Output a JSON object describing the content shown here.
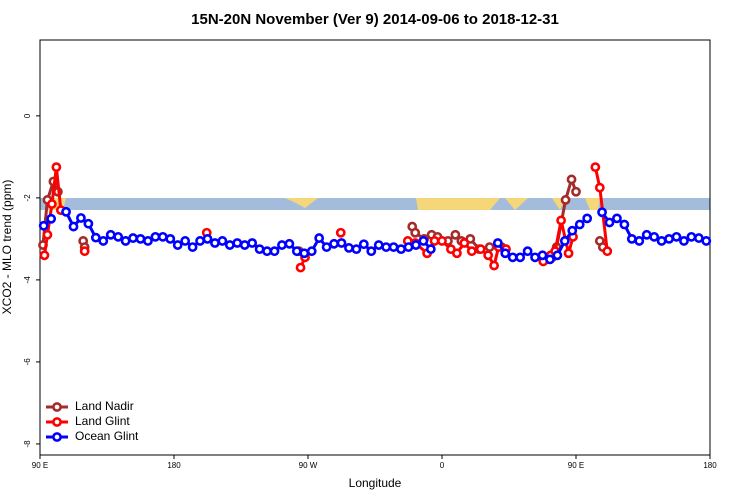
{
  "chart_data": {
    "type": "line",
    "title": "15N-20N November (Ver 9)   2014-09-06 to 2018-12-31",
    "x_label": "Longitude",
    "y_label": "XCO2 - MLO trend (ppm)",
    "xlim": [
      90,
      540
    ],
    "xticks": [
      {
        "value": 90,
        "label": "90 E"
      },
      {
        "value": 180,
        "label": "180"
      },
      {
        "value": 270,
        "label": "90 W"
      },
      {
        "value": 360,
        "label": "0"
      },
      {
        "value": 450,
        "label": "90 E"
      },
      {
        "value": 540,
        "label": "180"
      }
    ],
    "ylim": [
      -8.27,
      1.85
    ],
    "yticks": [
      0,
      -2,
      -4,
      -6,
      -8
    ],
    "legend": "bottom-left",
    "series": [
      {
        "name": "Land Nadir",
        "color": "#a52a2a",
        "x": [
          92,
          95,
          99,
          102,
          110,
          119,
          120,
          190,
          264,
          300,
          340,
          342,
          348,
          353,
          357,
          364,
          369,
          373,
          379,
          385,
          392,
          400,
          415,
          430,
          434,
          437,
          443,
          447,
          450,
          458,
          466,
          468
        ],
        "values": [
          -3.15,
          -2.05,
          -1.6,
          -1.85,
          null,
          -3.05,
          -3.2,
          null,
          -3.3,
          null,
          -2.7,
          -2.85,
          -3.0,
          -2.9,
          -2.95,
          -3.05,
          -2.9,
          -3.05,
          -3.0,
          -3.25,
          -3.2,
          -3.2,
          null,
          -3.5,
          -3.45,
          -3.2,
          -2.05,
          -1.55,
          -1.85,
          null,
          -3.05,
          -3.2
        ]
      },
      {
        "name": "Land Glint",
        "color": "#ff0000",
        "x": [
          93,
          95,
          98,
          101,
          104,
          112,
          120,
          150,
          202,
          230,
          265,
          268,
          280,
          292,
          320,
          337,
          342,
          350,
          355,
          360,
          366,
          370,
          375,
          380,
          386,
          391,
          395,
          398,
          403,
          415,
          428,
          433,
          436,
          440,
          445,
          448,
          455,
          463,
          466,
          471
        ],
        "values": [
          -3.4,
          -2.9,
          -2.15,
          -1.25,
          -2.3,
          null,
          -3.3,
          null,
          -2.85,
          null,
          -3.7,
          -3.45,
          null,
          -2.85,
          null,
          -3.05,
          -3.1,
          -3.35,
          -3.05,
          -3.05,
          -3.25,
          -3.35,
          -3.1,
          -3.3,
          -3.25,
          -3.4,
          -3.65,
          -3.2,
          -3.25,
          null,
          -3.55,
          -3.4,
          -3.3,
          -2.55,
          -3.35,
          -2.95,
          null,
          -1.25,
          -1.75,
          -3.3
        ]
      },
      {
        "name": "Ocean Glint",
        "color": "#0000ff",
        "x": [
          92.5,
          97.5,
          102.5,
          107.5,
          112.5,
          117.5,
          122.5,
          127.5,
          132.5,
          137.5,
          142.5,
          147.5,
          152.5,
          157.5,
          162.5,
          167.5,
          172.5,
          177.5,
          182.5,
          187.5,
          192.5,
          197.5,
          202.5,
          207.5,
          212.5,
          217.5,
          222.5,
          227.5,
          232.5,
          237.5,
          242.5,
          247.5,
          252.5,
          257.5,
          262.5,
          267.5,
          272.5,
          277.5,
          282.5,
          287.5,
          292.5,
          297.5,
          302.5,
          307.5,
          312.5,
          317.5,
          322.5,
          327.5,
          332.5,
          337.5,
          342.5,
          347.5,
          352.5,
          357.5,
          362.5,
          367.5,
          372.5,
          377.5,
          382.5,
          387.5,
          392.5,
          397.5,
          402.5,
          407.5,
          412.5,
          417.5,
          422.5,
          427.5,
          432.5,
          437.5,
          442.5,
          447.5,
          452.5,
          457.5,
          462.5,
          467.5,
          472.5,
          477.5,
          482.5,
          487.5,
          492.5,
          497.5,
          502.5,
          507.5,
          512.5,
          517.5,
          522.5,
          527.5,
          532.5,
          537.5
        ],
        "values": [
          -2.68,
          -2.51,
          null,
          -2.34,
          -2.7,
          -2.49,
          -2.63,
          -2.97,
          -3.05,
          -2.9,
          -2.95,
          -3.05,
          -2.98,
          -3.0,
          -3.05,
          -2.95,
          -2.95,
          -3.0,
          -3.15,
          -3.05,
          -3.2,
          -3.05,
          -3.0,
          -3.1,
          -3.05,
          -3.15,
          -3.1,
          -3.15,
          -3.1,
          -3.25,
          -3.3,
          -3.3,
          -3.15,
          -3.12,
          -3.3,
          -3.35,
          -3.3,
          -2.98,
          -3.2,
          -3.12,
          -3.1,
          -3.22,
          -3.25,
          -3.13,
          -3.3,
          -3.15,
          -3.2,
          -3.2,
          -3.25,
          -3.2,
          -3.15,
          -3.05,
          -3.25,
          null,
          null,
          null,
          null,
          null,
          null,
          null,
          null,
          -3.1,
          -3.35,
          -3.45,
          -3.45,
          -3.3,
          -3.45,
          -3.4,
          -3.5,
          -3.4,
          -3.05,
          -2.8,
          -2.65,
          -2.5,
          null,
          -2.35,
          -2.6,
          -2.5,
          -2.65,
          -3.0,
          -3.05,
          -2.9,
          -2.95,
          -3.05,
          -3.0,
          -2.95,
          -3.05,
          -2.95,
          -2.98,
          -3.05
        ]
      }
    ]
  }
}
